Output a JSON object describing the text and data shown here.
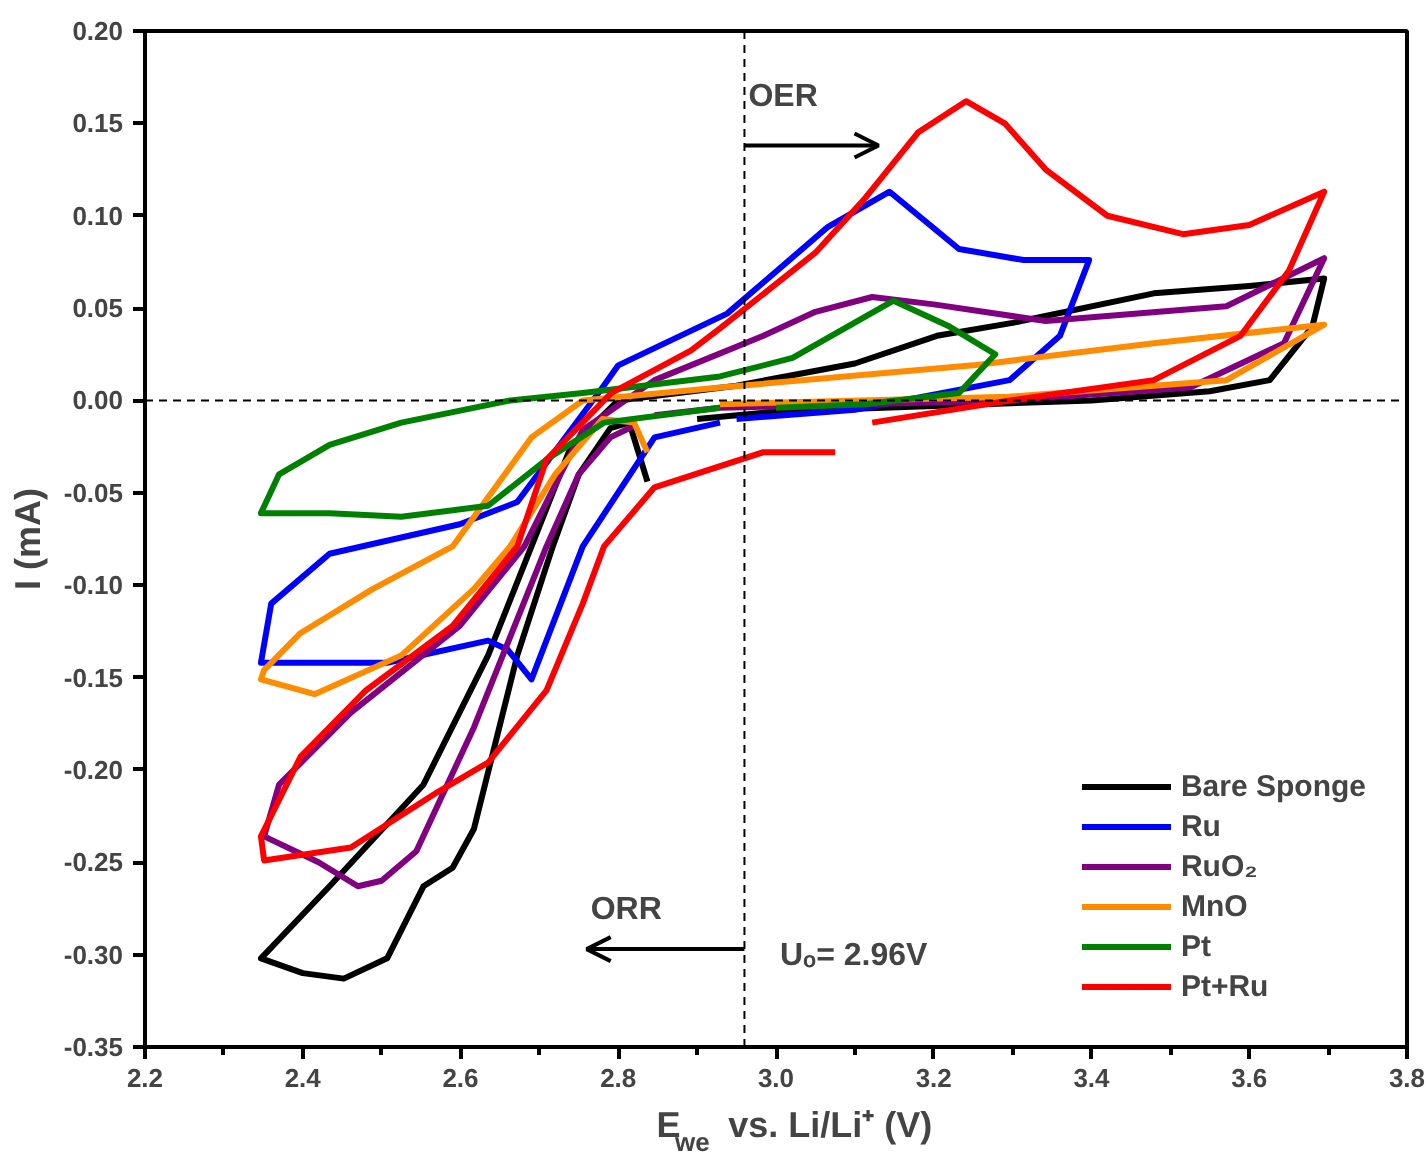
{
  "chart_data": {
    "type": "line",
    "xlabel": "E$_{we}$ vs. Li/Li⁺ (V)",
    "ylabel": "I (mA)",
    "xlim": [
      2.2,
      3.8
    ],
    "ylim": [
      -0.35,
      0.2
    ],
    "xticks": [
      {
        "value": 2.2,
        "label": "2.2"
      },
      {
        "value": 2.3,
        "label": null
      },
      {
        "value": 2.4,
        "label": "2.4"
      },
      {
        "value": 2.5,
        "label": null
      },
      {
        "value": 2.6,
        "label": "2.6"
      },
      {
        "value": 2.7,
        "label": null
      },
      {
        "value": 2.8,
        "label": "2.8"
      },
      {
        "value": 2.9,
        "label": null
      },
      {
        "value": 3.0,
        "label": "3.0"
      },
      {
        "value": 3.1,
        "label": null
      },
      {
        "value": 3.2,
        "label": "3.2"
      },
      {
        "value": 3.3,
        "label": null
      },
      {
        "value": 3.4,
        "label": "3.4"
      },
      {
        "value": 3.5,
        "label": null
      },
      {
        "value": 3.6,
        "label": "3.6"
      },
      {
        "value": 3.7,
        "label": null
      },
      {
        "value": 3.8,
        "label": "3.8"
      }
    ],
    "yticks": [
      {
        "value": -0.35,
        "label": "-0.35"
      },
      {
        "value": -0.3,
        "label": "-0.30"
      },
      {
        "value": -0.25,
        "label": "-0.25"
      },
      {
        "value": -0.2,
        "label": "-0.20"
      },
      {
        "value": -0.15,
        "label": "-0.15"
      },
      {
        "value": -0.1,
        "label": "-0.10"
      },
      {
        "value": -0.05,
        "label": "-0.05"
      },
      {
        "value": 0,
        "label": "0.00"
      },
      {
        "value": 0.05,
        "label": "0.05"
      },
      {
        "value": 0.1,
        "label": "0.10"
      },
      {
        "value": 0.15,
        "label": "0.15"
      },
      {
        "value": 0.2,
        "label": "0.20"
      }
    ],
    "grid": false,
    "legend": "bottom right",
    "marker": "none",
    "line_style": "solid",
    "ref_lines": [
      {
        "axis": "x",
        "value": 2.96,
        "line_style": "dashed"
      },
      {
        "axis": "y",
        "value": 0,
        "line_style": "dashed"
      }
    ],
    "annotations": [
      "OER",
      "ORR",
      "Uₒ= 2.96V"
    ],
    "series": [
      {
        "name": "Bare Sponge",
        "color": "#000000",
        "x": [
          2.837,
          2.814,
          2.79,
          2.75,
          2.717,
          2.672,
          2.617,
          2.59,
          2.553,
          2.507,
          2.452,
          2.4,
          2.347,
          2.434,
          2.553,
          2.635,
          2.69,
          2.74,
          2.8,
          2.95,
          3.1,
          3.204,
          3.3,
          3.479,
          3.6,
          3.695,
          3.68,
          3.626,
          3.55,
          3.4,
          3.2,
          3.0,
          2.9
        ],
        "values": [
          -0.044,
          -0.012,
          -0.015,
          -0.04,
          -0.079,
          -0.138,
          -0.232,
          -0.253,
          -0.263,
          -0.302,
          -0.313,
          -0.31,
          -0.302,
          -0.263,
          -0.208,
          -0.138,
          -0.079,
          -0.025,
          0.0,
          0.008,
          0.02,
          0.035,
          0.042,
          0.058,
          0.062,
          0.066,
          0.04,
          0.011,
          0.005,
          0.0,
          -0.003,
          -0.006,
          -0.01
        ]
      },
      {
        "name": "Ru",
        "color": "#0000ff",
        "x": [
          2.929,
          2.846,
          2.755,
          2.69,
          2.66,
          2.635,
          2.507,
          2.434,
          2.347,
          2.36,
          2.434,
          2.599,
          2.672,
          2.78,
          2.8,
          2.938,
          3.066,
          3.144,
          3.232,
          3.314,
          3.397,
          3.36,
          3.296,
          3.1,
          2.95
        ],
        "values": [
          -0.012,
          -0.02,
          -0.079,
          -0.151,
          -0.135,
          -0.13,
          -0.142,
          -0.142,
          -0.142,
          -0.11,
          -0.083,
          -0.067,
          -0.055,
          0.007,
          0.019,
          0.047,
          0.094,
          0.113,
          0.082,
          0.076,
          0.076,
          0.035,
          0.011,
          -0.005,
          -0.01
        ]
      },
      {
        "name": "RuO₂",
        "color": "#800080",
        "x": [
          2.819,
          2.79,
          2.75,
          2.709,
          2.617,
          2.544,
          2.5,
          2.47,
          2.42,
          2.351,
          2.37,
          2.461,
          2.599,
          2.681,
          2.755,
          2.846,
          2.984,
          3.05,
          3.122,
          3.2,
          3.342,
          3.571,
          3.695,
          3.644,
          3.525,
          3.296,
          2.929,
          2.846
        ],
        "values": [
          -0.014,
          -0.02,
          -0.04,
          -0.079,
          -0.177,
          -0.244,
          -0.26,
          -0.263,
          -0.25,
          -0.236,
          -0.208,
          -0.169,
          -0.122,
          -0.079,
          -0.016,
          0.011,
          0.035,
          0.048,
          0.056,
          0.052,
          0.043,
          0.051,
          0.077,
          0.031,
          0.007,
          0.0,
          -0.004,
          -0.008
        ]
      },
      {
        "name": "MnO",
        "color": "#ff8c00",
        "x": [
          2.837,
          2.82,
          2.78,
          2.72,
          2.663,
          2.617,
          2.525,
          2.415,
          2.347,
          2.351,
          2.397,
          2.489,
          2.59,
          2.69,
          2.755,
          2.929,
          3.25,
          3.479,
          3.695,
          3.571,
          3.296,
          2.929
        ],
        "values": [
          -0.028,
          -0.012,
          -0.01,
          -0.04,
          -0.079,
          -0.102,
          -0.138,
          -0.159,
          -0.151,
          -0.146,
          -0.126,
          -0.102,
          -0.079,
          -0.02,
          0.0,
          0.007,
          0.019,
          0.031,
          0.041,
          0.011,
          0.002,
          -0.002
        ]
      },
      {
        "name": "Pt",
        "color": "#008000",
        "x": [
          2.929,
          2.892,
          2.782,
          2.709,
          2.635,
          2.525,
          2.434,
          2.347,
          2.37,
          2.434,
          2.525,
          2.663,
          2.755,
          2.929,
          3.021,
          3.149,
          3.22,
          3.278,
          3.232,
          3.112,
          3.0
        ],
        "values": [
          -0.004,
          -0.006,
          -0.012,
          -0.032,
          -0.057,
          -0.063,
          -0.061,
          -0.061,
          -0.04,
          -0.024,
          -0.012,
          0.0,
          0.004,
          0.013,
          0.023,
          0.054,
          0.04,
          0.025,
          0.004,
          -0.002,
          -0.004
        ]
      },
      {
        "name": "Pt+Ru",
        "color": "#ff0000",
        "x": [
          3.075,
          2.984,
          2.846,
          2.782,
          2.755,
          2.709,
          2.635,
          2.571,
          2.461,
          2.351,
          2.347,
          2.397,
          2.48,
          2.59,
          2.672,
          2.709,
          2.791,
          2.892,
          2.929,
          3.05,
          3.112,
          3.18,
          3.241,
          3.29,
          3.342,
          3.42,
          3.516,
          3.6,
          3.695,
          3.65,
          3.589,
          3.479,
          3.296,
          3.122
        ],
        "values": [
          -0.028,
          -0.028,
          -0.047,
          -0.079,
          -0.11,
          -0.157,
          -0.196,
          -0.212,
          -0.242,
          -0.249,
          -0.236,
          -0.193,
          -0.157,
          -0.122,
          -0.079,
          -0.032,
          0.004,
          0.027,
          0.039,
          0.08,
          0.109,
          0.145,
          0.162,
          0.15,
          0.125,
          0.1,
          0.09,
          0.095,
          0.113,
          0.07,
          0.035,
          0.011,
          0.0,
          -0.012
        ]
      }
    ]
  }
}
